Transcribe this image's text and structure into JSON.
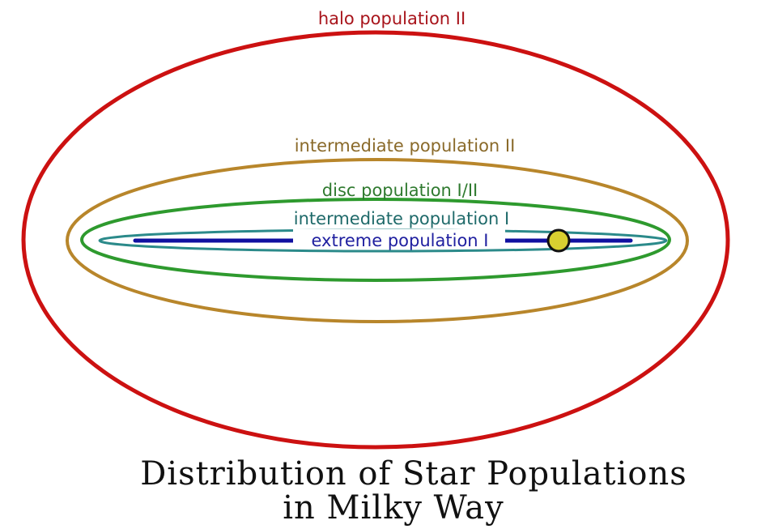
{
  "diagram": {
    "title_line1": "Distribution of Star Populations",
    "title_line2": "in Milky Way",
    "populations": [
      {
        "label": "halo population II",
        "color": "#a8141b",
        "line": "#cc1111"
      },
      {
        "label": "intermediate population II",
        "color": "#8a6a2a",
        "line": "#b8862b"
      },
      {
        "label": "disc population I/II",
        "color": "#2f7a2f",
        "line": "#2e9a2e"
      },
      {
        "label": "intermediate population I",
        "color": "#1f6a6a",
        "line": "#2b8a8a"
      },
      {
        "label": "extreme population I",
        "color": "#2020a0",
        "line": "#1010a0"
      }
    ],
    "sun_color": "#d8d030"
  }
}
